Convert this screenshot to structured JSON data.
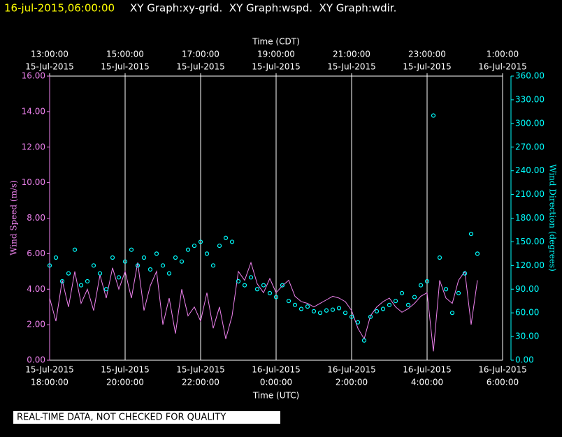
{
  "chart_data": {
    "type": "line",
    "title": "16-jul-2015,06:00:00",
    "subtitle": "XY Graph:xy-grid.  XY Graph:wspd.  XY Graph:wdir.",
    "annotation": "REAL-TIME DATA, NOT CHECKED FOR QUALITY",
    "x_label": "Time (UTC)",
    "x2_label": "Time (CDT)",
    "y_label": "Wind Speed (m/s)",
    "y2_label": "Wind Direction (degrees)",
    "grid": true,
    "xlim": [
      "2015-07-15T18:00",
      "2015-07-16T06:00"
    ],
    "xticks": [
      {
        "value": "2015-07-15T18:00",
        "label": [
          "15-Jul-2015",
          "18:00:00"
        ]
      },
      {
        "value": "2015-07-15T20:00",
        "label": [
          "15-Jul-2015",
          "20:00:00"
        ]
      },
      {
        "value": "2015-07-15T22:00",
        "label": [
          "15-Jul-2015",
          "22:00:00"
        ]
      },
      {
        "value": "2015-07-16T00:00",
        "label": [
          "16-Jul-2015",
          "0:00:00"
        ]
      },
      {
        "value": "2015-07-16T02:00",
        "label": [
          "16-Jul-2015",
          "2:00:00"
        ]
      },
      {
        "value": "2015-07-16T04:00",
        "label": [
          "16-Jul-2015",
          "4:00:00"
        ]
      },
      {
        "value": "2015-07-16T06:00",
        "label": [
          "16-Jul-2015",
          "6:00:00"
        ]
      }
    ],
    "x2ticks": [
      {
        "value": "2015-07-15T18:00",
        "label": [
          "13:00:00",
          "15-Jul-2015"
        ]
      },
      {
        "value": "2015-07-15T20:00",
        "label": [
          "15:00:00",
          "15-Jul-2015"
        ]
      },
      {
        "value": "2015-07-15T22:00",
        "label": [
          "17:00:00",
          "15-Jul-2015"
        ]
      },
      {
        "value": "2015-07-16T00:00",
        "label": [
          "19:00:00",
          "15-Jul-2015"
        ]
      },
      {
        "value": "2015-07-16T02:00",
        "label": [
          "21:00:00",
          "15-Jul-2015"
        ]
      },
      {
        "value": "2015-07-16T04:00",
        "label": [
          "23:00:00",
          "15-Jul-2015"
        ]
      },
      {
        "value": "2015-07-16T06:00",
        "label": [
          "1:00:00",
          "16-Jul-2015"
        ]
      }
    ],
    "ylim": [
      0,
      16
    ],
    "yticks": [
      {
        "value": 0,
        "label": "0.00"
      },
      {
        "value": 2,
        "label": "2.00"
      },
      {
        "value": 4,
        "label": "4.00"
      },
      {
        "value": 6,
        "label": "6.00"
      },
      {
        "value": 8,
        "label": "8.00"
      },
      {
        "value": 10,
        "label": "10.00"
      },
      {
        "value": 12,
        "label": "12.00"
      },
      {
        "value": 14,
        "label": "14.00"
      },
      {
        "value": 16,
        "label": "16.00"
      }
    ],
    "y2lim": [
      0,
      360
    ],
    "y2ticks": [
      {
        "value": 0,
        "label": "0.00"
      },
      {
        "value": 30,
        "label": "30.00"
      },
      {
        "value": 60,
        "label": "60.00"
      },
      {
        "value": 90,
        "label": "90.00"
      },
      {
        "value": 120,
        "label": "120.00"
      },
      {
        "value": 150,
        "label": "150.00"
      },
      {
        "value": 180,
        "label": "180.00"
      },
      {
        "value": 210,
        "label": "210.00"
      },
      {
        "value": 240,
        "label": "240.00"
      },
      {
        "value": 270,
        "label": "270.00"
      },
      {
        "value": 300,
        "label": "300.00"
      },
      {
        "value": 330,
        "label": "330.00"
      },
      {
        "value": 360,
        "label": "360.00"
      }
    ],
    "x": [
      "2015-07-15T18:00",
      "2015-07-15T18:10",
      "2015-07-15T18:20",
      "2015-07-15T18:30",
      "2015-07-15T18:40",
      "2015-07-15T18:50",
      "2015-07-15T19:00",
      "2015-07-15T19:10",
      "2015-07-15T19:20",
      "2015-07-15T19:30",
      "2015-07-15T19:40",
      "2015-07-15T19:50",
      "2015-07-15T20:00",
      "2015-07-15T20:10",
      "2015-07-15T20:20",
      "2015-07-15T20:30",
      "2015-07-15T20:40",
      "2015-07-15T20:50",
      "2015-07-15T21:00",
      "2015-07-15T21:10",
      "2015-07-15T21:20",
      "2015-07-15T21:30",
      "2015-07-15T21:40",
      "2015-07-15T21:50",
      "2015-07-15T22:00",
      "2015-07-15T22:10",
      "2015-07-15T22:20",
      "2015-07-15T22:30",
      "2015-07-15T22:40",
      "2015-07-15T22:50",
      "2015-07-15T23:00",
      "2015-07-15T23:10",
      "2015-07-15T23:20",
      "2015-07-15T23:30",
      "2015-07-15T23:40",
      "2015-07-15T23:50",
      "2015-07-16T00:00",
      "2015-07-16T00:10",
      "2015-07-16T00:20",
      "2015-07-16T00:30",
      "2015-07-16T00:40",
      "2015-07-16T00:50",
      "2015-07-16T01:00",
      "2015-07-16T01:10",
      "2015-07-16T01:20",
      "2015-07-16T01:30",
      "2015-07-16T01:40",
      "2015-07-16T01:50",
      "2015-07-16T02:00",
      "2015-07-16T02:10",
      "2015-07-16T02:20",
      "2015-07-16T02:30",
      "2015-07-16T02:40",
      "2015-07-16T02:50",
      "2015-07-16T03:00",
      "2015-07-16T03:10",
      "2015-07-16T03:20",
      "2015-07-16T03:30",
      "2015-07-16T03:40",
      "2015-07-16T03:50",
      "2015-07-16T04:00",
      "2015-07-16T04:10",
      "2015-07-16T04:20",
      "2015-07-16T04:30",
      "2015-07-16T04:40",
      "2015-07-16T04:50",
      "2015-07-16T05:00",
      "2015-07-16T05:10",
      "2015-07-16T05:20"
    ],
    "series": [
      {
        "name": "wspd",
        "type": "line",
        "color": "#ee82ee",
        "values": [
          3.5,
          2.2,
          4.5,
          3,
          5,
          3.2,
          4,
          2.8,
          4.8,
          3.5,
          5.2,
          4,
          5,
          3.5,
          5.5,
          2.8,
          4.2,
          5,
          2,
          3.5,
          1.5,
          4,
          2.5,
          3,
          2.2,
          3.8,
          1.8,
          3,
          1.2,
          2.5,
          5,
          4.5,
          5.5,
          4.3,
          3.8,
          4.6,
          3.8,
          4.2,
          4.5,
          3.6,
          3.3,
          3.2,
          3,
          3.2,
          3.4,
          3.6,
          3.5,
          3.3,
          2.8,
          1.8,
          1.2,
          2.5,
          3,
          3.3,
          3.5,
          3,
          2.7,
          2.9,
          3.2,
          3.6,
          3.8,
          0.5,
          4.5,
          3.5,
          3.2,
          4.5,
          5,
          2,
          4.5
        ]
      },
      {
        "name": "wdir",
        "type": "scatter",
        "color": "#00ffff",
        "values": [
          120,
          130,
          100,
          110,
          140,
          95,
          100,
          120,
          110,
          90,
          130,
          105,
          125,
          140,
          120,
          130,
          115,
          135,
          120,
          110,
          130,
          125,
          140,
          145,
          150,
          135,
          120,
          145,
          155,
          150,
          100,
          95,
          105,
          90,
          95,
          85,
          80,
          95,
          75,
          70,
          65,
          68,
          62,
          60,
          63,
          64,
          66,
          60,
          55,
          48,
          25,
          55,
          62,
          65,
          70,
          75,
          85,
          70,
          80,
          95,
          100,
          310,
          130,
          90,
          60,
          85,
          110,
          160,
          135
        ],
        "axis": "y2"
      }
    ]
  }
}
